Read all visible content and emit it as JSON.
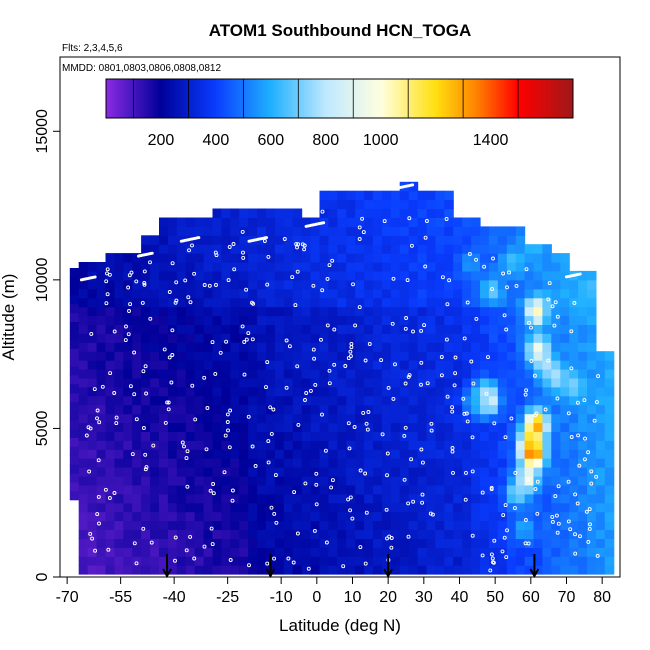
{
  "chart_data": {
    "type": "heatmap",
    "title": "ATOM1 Southbound HCN_TOGA",
    "subtitle_flights": "Flts: 2,3,4,5,6",
    "subtitle_dates": "MMDD: 0801,0803,0806,0808,0812",
    "xlabel": "Latitude (deg N)",
    "ylabel": "Altitude (m)",
    "xlim": [
      -72,
      85
    ],
    "ylim": [
      0,
      17500
    ],
    "x_tick_labels": [
      "-70",
      "-55",
      "-40",
      "-25",
      "-10",
      "0",
      "10",
      "20",
      "30",
      "40",
      "50",
      "60",
      "70",
      "80"
    ],
    "x_tick_values": [
      -70,
      -55,
      -40,
      -25,
      -10,
      0,
      10,
      20,
      30,
      40,
      50,
      60,
      70,
      80
    ],
    "y_tick_labels": [
      "0",
      "5000",
      "10000",
      "15000"
    ],
    "y_tick_values": [
      0,
      5000,
      10000,
      15000
    ],
    "colorbar": {
      "min": 0,
      "max": 1700,
      "tick_labels": [
        "200",
        "400",
        "600",
        "800",
        "1000",
        "1400"
      ],
      "tick_values": [
        200,
        400,
        600,
        800,
        1000,
        1400
      ],
      "stops": [
        {
          "value": 0,
          "color": "#8a2be2"
        },
        {
          "value": 200,
          "color": "#000099"
        },
        {
          "value": 400,
          "color": "#0a3dff"
        },
        {
          "value": 600,
          "color": "#1fb0ff"
        },
        {
          "value": 800,
          "color": "#bfe8ff"
        },
        {
          "value": 1000,
          "color": "#ffffe0"
        },
        {
          "value": 1200,
          "color": "#ffdf10"
        },
        {
          "value": 1350,
          "color": "#ff8000"
        },
        {
          "value": 1500,
          "color": "#ff0000"
        },
        {
          "value": 1700,
          "color": "#a01818"
        }
      ]
    },
    "hotspots": [
      {
        "lat": 60.5,
        "alt": 4000,
        "value": 1520
      },
      {
        "lat": 61.5,
        "alt": 5000,
        "value": 1350
      },
      {
        "lat": 60.0,
        "alt": 4400,
        "value": 1250
      },
      {
        "lat": 59.0,
        "alt": 3200,
        "value": 1000
      },
      {
        "lat": 61.5,
        "alt": 8800,
        "value": 1050
      },
      {
        "lat": 62.0,
        "alt": 7500,
        "value": 1000
      },
      {
        "lat": 48.0,
        "alt": 5800,
        "value": 1000
      },
      {
        "lat": 47.0,
        "alt": 6000,
        "value": 800
      },
      {
        "lat": 64.0,
        "alt": 7000,
        "value": 780
      },
      {
        "lat": 67.0,
        "alt": 6600,
        "value": 780
      },
      {
        "lat": 72.0,
        "alt": 6300,
        "value": 720
      },
      {
        "lat": 49.0,
        "alt": 9500,
        "value": 700
      },
      {
        "lat": 55.0,
        "alt": 10500,
        "value": 650
      },
      {
        "lat": 61.0,
        "alt": 11000,
        "value": 620
      },
      {
        "lat": 43.0,
        "alt": 10400,
        "value": 560
      },
      {
        "lat": 56.0,
        "alt": 2700,
        "value": 750
      },
      {
        "lat": 58.0,
        "alt": 1500,
        "value": 600
      },
      {
        "lat": 73.0,
        "alt": 9000,
        "value": 600
      },
      {
        "lat": 44.0,
        "alt": 5700,
        "value": 600
      }
    ],
    "flight_profile_markers_lat": [
      -42,
      -13,
      20,
      61
    ]
  }
}
